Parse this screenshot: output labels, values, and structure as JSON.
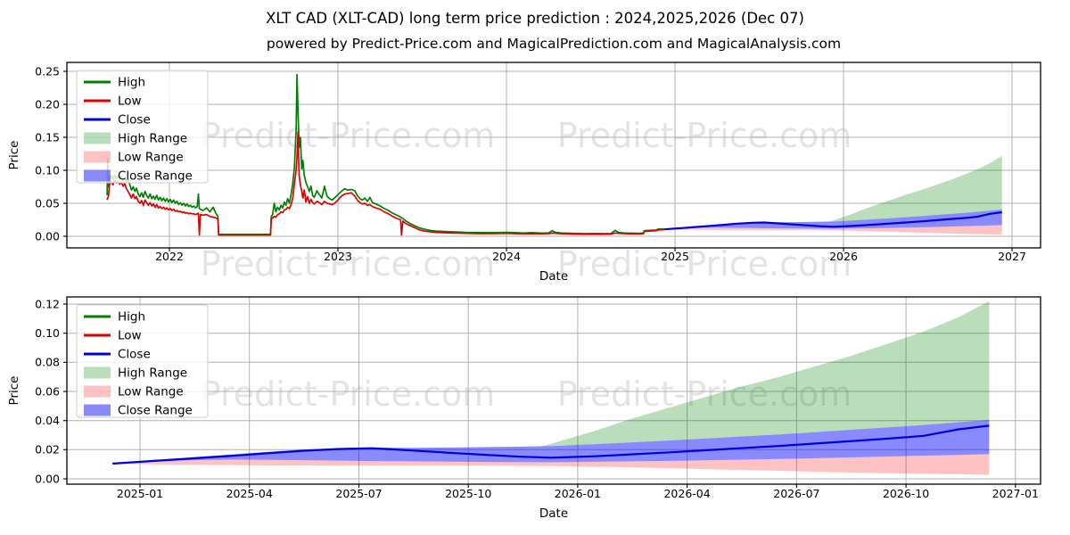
{
  "title": "XLT CAD (XLT-CAD) long term price prediction : 2024,2025,2026 (Dec 07)",
  "subtitle": "powered by Predict-Price.com and MagicalPrediction.com and MagicalAnalysis.com",
  "watermark": "Predict-Price.com",
  "colors": {
    "high_line": "#007f00",
    "low_line": "#dd0000",
    "close_line": "#0000dd",
    "high_range_fill": "rgba(0,128,0,0.27)",
    "low_range_fill": "rgba(255,0,0,0.24)",
    "close_range_fill": "rgba(0,0,255,0.46)",
    "grid": "#b0b0b0",
    "spine": "#000000",
    "watermark_color": "#000000"
  },
  "legend": [
    "High",
    "Low",
    "Close",
    "High Range",
    "Low Range",
    "Close Range"
  ],
  "chart_data": {
    "type": "line",
    "panels": [
      {
        "id": "top",
        "ylabel": "Price",
        "xlabel": "Date",
        "x_ticks": [
          {
            "v": 2022,
            "label": "2022"
          },
          {
            "v": 2023,
            "label": "2023"
          },
          {
            "v": 2024,
            "label": "2024"
          },
          {
            "v": 2025,
            "label": "2025"
          },
          {
            "v": 2026,
            "label": "2026"
          },
          {
            "v": 2027,
            "label": "2027"
          }
        ],
        "y_ticks": [
          {
            "v": 0.0,
            "label": "0.00"
          },
          {
            "v": 0.05,
            "label": "0.05"
          },
          {
            "v": 0.1,
            "label": "0.10"
          },
          {
            "v": 0.15,
            "label": "0.15"
          },
          {
            "v": 0.2,
            "label": "0.20"
          },
          {
            "v": 0.25,
            "label": "0.25"
          }
        ],
        "ylim": [
          0,
          0.25
        ],
        "show_history": true
      },
      {
        "id": "bottom",
        "ylabel": "Price",
        "xlabel": "Date",
        "x_ticks": [
          {
            "v": 2025.0,
            "label": "2025-01"
          },
          {
            "v": 2025.25,
            "label": "2025-04"
          },
          {
            "v": 2025.5,
            "label": "2025-07"
          },
          {
            "v": 2025.75,
            "label": "2025-10"
          },
          {
            "v": 2026.0,
            "label": "2026-01"
          },
          {
            "v": 2026.25,
            "label": "2026-04"
          },
          {
            "v": 2026.5,
            "label": "2026-07"
          },
          {
            "v": 2026.75,
            "label": "2026-10"
          },
          {
            "v": 2027.0,
            "label": "2027-01"
          }
        ],
        "y_ticks": [
          {
            "v": 0.0,
            "label": "0.00"
          },
          {
            "v": 0.02,
            "label": "0.02"
          },
          {
            "v": 0.04,
            "label": "0.04"
          },
          {
            "v": 0.06,
            "label": "0.06"
          },
          {
            "v": 0.08,
            "label": "0.08"
          },
          {
            "v": 0.1,
            "label": "0.10"
          },
          {
            "v": 0.12,
            "label": "0.12"
          }
        ],
        "ylim": [
          0,
          0.12
        ],
        "show_history": false
      }
    ],
    "history_t_high_low": [
      [
        2021.63,
        0.062,
        0.055
      ],
      [
        2021.634,
        0.118,
        0.058
      ],
      [
        2021.638,
        0.075,
        0.06
      ],
      [
        2021.645,
        0.088,
        0.079
      ],
      [
        2021.655,
        0.092,
        0.083
      ],
      [
        2021.665,
        0.086,
        0.078
      ],
      [
        2021.675,
        0.093,
        0.085
      ],
      [
        2021.685,
        0.088,
        0.081
      ],
      [
        2021.695,
        0.091,
        0.083
      ],
      [
        2021.705,
        0.087,
        0.079
      ],
      [
        2021.715,
        0.09,
        0.082
      ],
      [
        2021.725,
        0.085,
        0.076
      ],
      [
        2021.735,
        0.089,
        0.08
      ],
      [
        2021.745,
        0.083,
        0.072
      ],
      [
        2021.755,
        0.086,
        0.068
      ],
      [
        2021.765,
        0.078,
        0.063
      ],
      [
        2021.775,
        0.07,
        0.058
      ],
      [
        2021.785,
        0.075,
        0.064
      ],
      [
        2021.795,
        0.068,
        0.057
      ],
      [
        2021.805,
        0.073,
        0.06
      ],
      [
        2021.815,
        0.064,
        0.053
      ],
      [
        2021.825,
        0.06,
        0.05
      ],
      [
        2021.835,
        0.066,
        0.054
      ],
      [
        2021.845,
        0.059,
        0.047
      ],
      [
        2021.855,
        0.068,
        0.055
      ],
      [
        2021.865,
        0.062,
        0.051
      ],
      [
        2021.875,
        0.058,
        0.047
      ],
      [
        2021.885,
        0.064,
        0.051
      ],
      [
        2021.895,
        0.057,
        0.046
      ],
      [
        2021.905,
        0.061,
        0.049
      ],
      [
        2021.915,
        0.056,
        0.044
      ],
      [
        2021.925,
        0.062,
        0.048
      ],
      [
        2021.935,
        0.055,
        0.043
      ],
      [
        2021.945,
        0.059,
        0.045
      ],
      [
        2021.955,
        0.054,
        0.042
      ],
      [
        2021.965,
        0.058,
        0.044
      ],
      [
        2021.975,
        0.053,
        0.041
      ],
      [
        2021.985,
        0.057,
        0.043
      ],
      [
        2021.995,
        0.052,
        0.04
      ],
      [
        2022.005,
        0.056,
        0.042
      ],
      [
        2022.015,
        0.051,
        0.039
      ],
      [
        2022.025,
        0.055,
        0.041
      ],
      [
        2022.035,
        0.05,
        0.038
      ],
      [
        2022.045,
        0.053,
        0.039
      ],
      [
        2022.055,
        0.048,
        0.037
      ],
      [
        2022.065,
        0.051,
        0.038
      ],
      [
        2022.075,
        0.047,
        0.036
      ],
      [
        2022.085,
        0.05,
        0.037
      ],
      [
        2022.095,
        0.046,
        0.035
      ],
      [
        2022.105,
        0.049,
        0.036
      ],
      [
        2022.115,
        0.045,
        0.034
      ],
      [
        2022.125,
        0.047,
        0.035
      ],
      [
        2022.135,
        0.044,
        0.034
      ],
      [
        2022.145,
        0.046,
        0.034
      ],
      [
        2022.155,
        0.043,
        0.033
      ],
      [
        2022.165,
        0.045,
        0.034
      ],
      [
        2022.172,
        0.064,
        0.035
      ],
      [
        2022.178,
        0.042,
        0.002
      ],
      [
        2022.184,
        0.041,
        0.033
      ],
      [
        2022.2,
        0.039,
        0.032
      ],
      [
        2022.22,
        0.043,
        0.033
      ],
      [
        2022.24,
        0.037,
        0.03
      ],
      [
        2022.26,
        0.044,
        0.029
      ],
      [
        2022.275,
        0.035,
        0.028
      ],
      [
        2022.288,
        0.03,
        0.026
      ],
      [
        2022.292,
        0.0028,
        0.002
      ],
      [
        2022.4,
        0.0028,
        0.002
      ],
      [
        2022.55,
        0.0028,
        0.002
      ],
      [
        2022.6,
        0.0028,
        0.002
      ],
      [
        2022.604,
        0.03,
        0.0255
      ],
      [
        2022.612,
        0.033,
        0.028
      ],
      [
        2022.622,
        0.05,
        0.03
      ],
      [
        2022.632,
        0.037,
        0.029
      ],
      [
        2022.642,
        0.044,
        0.033
      ],
      [
        2022.652,
        0.04,
        0.034
      ],
      [
        2022.662,
        0.047,
        0.037
      ],
      [
        2022.672,
        0.043,
        0.036
      ],
      [
        2022.682,
        0.052,
        0.04
      ],
      [
        2022.692,
        0.047,
        0.041
      ],
      [
        2022.702,
        0.057,
        0.044
      ],
      [
        2022.712,
        0.05,
        0.042
      ],
      [
        2022.722,
        0.064,
        0.048
      ],
      [
        2022.732,
        0.08,
        0.058
      ],
      [
        2022.742,
        0.105,
        0.08
      ],
      [
        2022.752,
        0.16,
        0.1
      ],
      [
        2022.757,
        0.245,
        0.12
      ],
      [
        2022.763,
        0.19,
        0.158
      ],
      [
        2022.77,
        0.135,
        0.092
      ],
      [
        2022.777,
        0.15,
        0.078
      ],
      [
        2022.785,
        0.102,
        0.068
      ],
      [
        2022.792,
        0.115,
        0.058
      ],
      [
        2022.8,
        0.092,
        0.07
      ],
      [
        2022.81,
        0.082,
        0.052
      ],
      [
        2022.82,
        0.075,
        0.06
      ],
      [
        2022.83,
        0.068,
        0.05
      ],
      [
        2022.84,
        0.076,
        0.056
      ],
      [
        2022.85,
        0.062,
        0.051
      ],
      [
        2022.86,
        0.059,
        0.049
      ],
      [
        2022.875,
        0.069,
        0.053
      ],
      [
        2022.89,
        0.063,
        0.051
      ],
      [
        2022.905,
        0.058,
        0.048
      ],
      [
        2022.92,
        0.076,
        0.053
      ],
      [
        2022.935,
        0.061,
        0.05
      ],
      [
        2022.95,
        0.057,
        0.049
      ],
      [
        2022.965,
        0.055,
        0.048
      ],
      [
        2022.98,
        0.058,
        0.05
      ],
      [
        2023.0,
        0.063,
        0.055
      ],
      [
        2023.02,
        0.068,
        0.061
      ],
      [
        2023.04,
        0.072,
        0.064
      ],
      [
        2023.06,
        0.07,
        0.065
      ],
      [
        2023.08,
        0.071,
        0.066
      ],
      [
        2023.1,
        0.069,
        0.061
      ],
      [
        2023.115,
        0.062,
        0.055
      ],
      [
        2023.13,
        0.057,
        0.051
      ],
      [
        2023.145,
        0.055,
        0.049
      ],
      [
        2023.16,
        0.058,
        0.05
      ],
      [
        2023.175,
        0.053,
        0.047
      ],
      [
        2023.19,
        0.059,
        0.048
      ],
      [
        2023.205,
        0.051,
        0.045
      ],
      [
        2023.225,
        0.049,
        0.043
      ],
      [
        2023.25,
        0.046,
        0.041
      ],
      [
        2023.275,
        0.042,
        0.037
      ],
      [
        2023.3,
        0.039,
        0.034
      ],
      [
        2023.325,
        0.035,
        0.03
      ],
      [
        2023.35,
        0.032,
        0.027
      ],
      [
        2023.372,
        0.029,
        0.025
      ],
      [
        2023.377,
        0.028,
        0.002
      ],
      [
        2023.385,
        0.027,
        0.023
      ],
      [
        2023.405,
        0.023,
        0.019
      ],
      [
        2023.43,
        0.019,
        0.016
      ],
      [
        2023.455,
        0.016,
        0.013
      ],
      [
        2023.48,
        0.013,
        0.01
      ],
      [
        2023.51,
        0.011,
        0.008
      ],
      [
        2023.545,
        0.009,
        0.007
      ],
      [
        2023.58,
        0.008,
        0.006
      ],
      [
        2023.62,
        0.0075,
        0.0055
      ],
      [
        2023.66,
        0.007,
        0.005
      ],
      [
        2023.71,
        0.0065,
        0.0048
      ],
      [
        2023.76,
        0.006,
        0.0045
      ],
      [
        2023.82,
        0.0058,
        0.0042
      ],
      [
        2023.88,
        0.0055,
        0.004
      ],
      [
        2023.94,
        0.0057,
        0.0042
      ],
      [
        2024.0,
        0.006,
        0.0045
      ],
      [
        2024.05,
        0.0055,
        0.004
      ],
      [
        2024.1,
        0.005,
        0.0038
      ],
      [
        2024.15,
        0.0055,
        0.004
      ],
      [
        2024.2,
        0.005,
        0.0038
      ],
      [
        2024.25,
        0.0052,
        0.004
      ],
      [
        2024.272,
        0.0085,
        0.0048
      ],
      [
        2024.29,
        0.006,
        0.0044
      ],
      [
        2024.33,
        0.005,
        0.0038
      ],
      [
        2024.37,
        0.0046,
        0.0035
      ],
      [
        2024.42,
        0.0042,
        0.0032
      ],
      [
        2024.47,
        0.004,
        0.003
      ],
      [
        2024.52,
        0.0042,
        0.0032
      ],
      [
        2024.57,
        0.004,
        0.003
      ],
      [
        2024.62,
        0.0042,
        0.0032
      ],
      [
        2024.645,
        0.009,
        0.005
      ],
      [
        2024.665,
        0.006,
        0.0045
      ],
      [
        2024.7,
        0.005,
        0.004
      ],
      [
        2024.74,
        0.0047,
        0.0036
      ],
      [
        2024.78,
        0.0045,
        0.0035
      ],
      [
        2024.812,
        0.0048,
        0.0038
      ],
      [
        2024.818,
        0.0085,
        0.0072
      ],
      [
        2024.85,
        0.009,
        0.008
      ],
      [
        2024.89,
        0.0095,
        0.0085
      ],
      [
        2024.898,
        0.0108,
        0.0096
      ],
      [
        2024.937,
        0.0112,
        0.0102
      ]
    ],
    "prediction_t_close_cu_cl_ll": [
      [
        2024.937,
        0.0105,
        0.0107,
        0.0103,
        0.0103
      ],
      [
        2025.04,
        0.0125,
        0.013,
        0.012,
        0.01
      ],
      [
        2025.12,
        0.014,
        0.0148,
        0.0128,
        0.0097
      ],
      [
        2025.21,
        0.0158,
        0.0168,
        0.0132,
        0.0094
      ],
      [
        2025.29,
        0.0175,
        0.0185,
        0.013,
        0.0092
      ],
      [
        2025.37,
        0.0192,
        0.02,
        0.0128,
        0.0091
      ],
      [
        2025.46,
        0.0205,
        0.0212,
        0.0125,
        0.009
      ],
      [
        2025.53,
        0.021,
        0.0215,
        0.0122,
        0.009
      ],
      [
        2025.62,
        0.0195,
        0.0213,
        0.012,
        0.009
      ],
      [
        2025.71,
        0.0178,
        0.0215,
        0.0118,
        0.009
      ],
      [
        2025.79,
        0.0165,
        0.0218,
        0.0116,
        0.009
      ],
      [
        2025.87,
        0.0152,
        0.0221,
        0.0115,
        0.0089
      ],
      [
        2025.94,
        0.0145,
        0.0225,
        0.0114,
        0.0088
      ],
      [
        2026.04,
        0.0155,
        0.0238,
        0.0117,
        0.0084
      ],
      [
        2026.12,
        0.0168,
        0.025,
        0.012,
        0.0079
      ],
      [
        2026.21,
        0.0182,
        0.0263,
        0.0123,
        0.0073
      ],
      [
        2026.29,
        0.0196,
        0.0276,
        0.0127,
        0.0067
      ],
      [
        2026.37,
        0.021,
        0.029,
        0.0131,
        0.0061
      ],
      [
        2026.46,
        0.0226,
        0.0305,
        0.0136,
        0.0055
      ],
      [
        2026.54,
        0.0242,
        0.032,
        0.0141,
        0.0049
      ],
      [
        2026.62,
        0.0258,
        0.0336,
        0.0147,
        0.0043
      ],
      [
        2026.71,
        0.0276,
        0.0353,
        0.0153,
        0.0038
      ],
      [
        2026.79,
        0.0295,
        0.037,
        0.0159,
        0.0034
      ],
      [
        2026.87,
        0.034,
        0.0388,
        0.0164,
        0.0031
      ],
      [
        2026.94,
        0.0365,
        0.0405,
        0.017,
        0.0028
      ]
    ],
    "high_range_t_upper_lower": [
      [
        2025.92,
        0.0224,
        0.0223
      ],
      [
        2026.04,
        0.033,
        0.0238
      ],
      [
        2026.12,
        0.041,
        0.025
      ],
      [
        2026.21,
        0.049,
        0.0263
      ],
      [
        2026.29,
        0.056,
        0.0276
      ],
      [
        2026.37,
        0.063,
        0.029
      ],
      [
        2026.46,
        0.07,
        0.0305
      ],
      [
        2026.54,
        0.077,
        0.032
      ],
      [
        2026.62,
        0.084,
        0.0336
      ],
      [
        2026.71,
        0.093,
        0.0353
      ],
      [
        2026.79,
        0.101,
        0.037
      ],
      [
        2026.87,
        0.111,
        0.0388
      ],
      [
        2026.94,
        0.122,
        0.0405
      ]
    ]
  }
}
